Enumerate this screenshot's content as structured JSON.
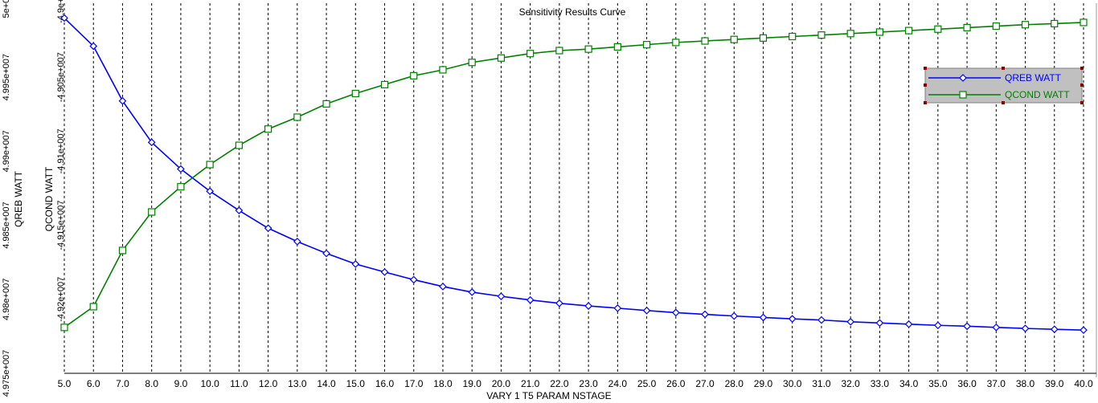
{
  "chart_data": {
    "type": "line",
    "title": "Sensitivity Results Curve",
    "xlabel": "VARY   1 T5 PARAM NSTAGE",
    "ylabel_left": "QREB WATT",
    "ylabel_right": "QCOND WATT",
    "grid": "vertical-dashed",
    "legend_position": "top-right",
    "x": [
      5,
      6,
      7,
      8,
      9,
      10,
      11,
      12,
      13,
      14,
      15,
      16,
      17,
      18,
      19,
      20,
      21,
      22,
      23,
      24,
      25,
      26,
      27,
      28,
      29,
      30,
      31,
      32,
      33,
      34,
      35,
      36,
      37,
      38,
      39,
      40
    ],
    "x_tick_labels": [
      "5.0",
      "6.0",
      "7.0",
      "8.0",
      "9.0",
      "10.0",
      "11.0",
      "12.0",
      "13.0",
      "14.0",
      "15.0",
      "16.0",
      "17.0",
      "18.0",
      "19.0",
      "20.0",
      "21.0",
      "22.0",
      "23.0",
      "24.0",
      "25.0",
      "26.0",
      "27.0",
      "28.0",
      "29.0",
      "30.0",
      "31.0",
      "32.0",
      "33.0",
      "34.0",
      "35.0",
      "36.0",
      "37.0",
      "38.0",
      "39.0",
      "40.0"
    ],
    "y_left": {
      "range": [
        49750000,
        50000000
      ],
      "tick_values": [
        49750000,
        49800000,
        49850000,
        49900000,
        49950000,
        50000000
      ],
      "tick_labels": [
        "4.975e+007",
        "4.98e+007",
        "4.985e+007",
        "4.99e+007",
        "4.995e+007",
        "5e+007"
      ]
    },
    "y_right": {
      "range": [
        -49250000,
        -49000000
      ],
      "tick_values": [
        -49200000,
        -49150000,
        -49100000,
        -49050000,
        -49000000
      ],
      "tick_labels": [
        "-4.92e+007",
        "-4.915e+007",
        "-4.91e+007",
        "-4.905e+007",
        "-4.9e+007"
      ]
    },
    "series": [
      {
        "name": "QREB WATT",
        "axis": "left",
        "color": "#0000ff",
        "marker": "diamond",
        "values": [
          49990000,
          49971000,
          49934000,
          49906000,
          49888000,
          49873000,
          49860000,
          49848000,
          49839000,
          49831000,
          49823800,
          49818400,
          49813200,
          49808600,
          49804800,
          49802000,
          49799500,
          49797300,
          49795500,
          49794000,
          49792400,
          49791000,
          49789800,
          49788700,
          49787700,
          49786800,
          49786000,
          49784800,
          49784000,
          49783200,
          49782400,
          49781800,
          49781000,
          49780300,
          49779700,
          49779200
        ]
      },
      {
        "name": "QCOND WATT",
        "axis": "right",
        "color": "#008000",
        "marker": "square",
        "values": [
          -49219000,
          -49205000,
          -49167000,
          -49141000,
          -49124000,
          -49109000,
          -49096000,
          -49085000,
          -49077000,
          -49068000,
          -49061000,
          -49055000,
          -49049000,
          -49045000,
          -49040000,
          -49037000,
          -49034000,
          -49032000,
          -49031000,
          -49029500,
          -49028000,
          -49026500,
          -49025500,
          -49024500,
          -49023500,
          -49022500,
          -49021500,
          -49020500,
          -49019500,
          -49018500,
          -49017500,
          -49016500,
          -49015500,
          -49014500,
          -49013800,
          -49013000
        ]
      }
    ]
  }
}
